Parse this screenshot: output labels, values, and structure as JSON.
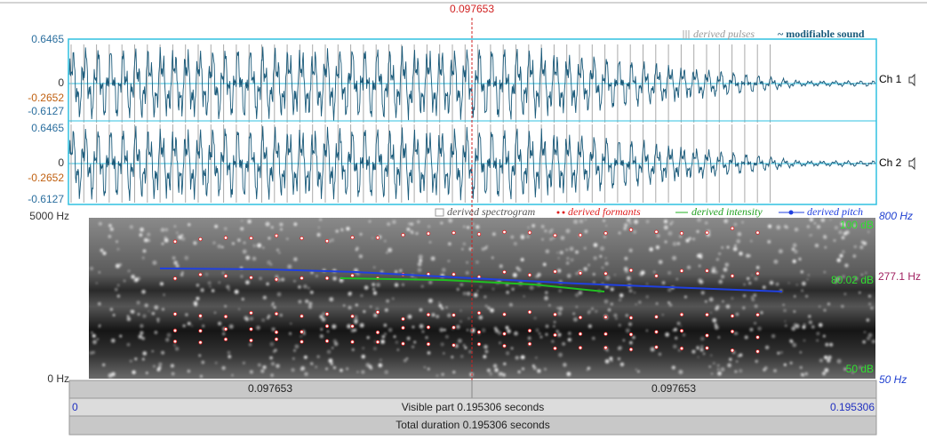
{
  "cursor": "0.097653",
  "legend_top": {
    "pulses": "derived pulses",
    "sound": "~ modifiable sound"
  },
  "channels": [
    {
      "max": "0.6465",
      "zero": "0",
      "cursor_value": "-0.2652",
      "min": "-0.6127",
      "label": "Ch 1"
    },
    {
      "max": "0.6465",
      "zero": "0",
      "cursor_value": "-0.2652",
      "min": "-0.6127",
      "label": "Ch 2"
    }
  ],
  "spectrogram": {
    "legend": [
      "derived spectrogram",
      "derived formants",
      "derived intensity",
      "derived pitch"
    ],
    "freq_max": "5000 Hz",
    "freq_min": "0 Hz",
    "pitch_max": "800 Hz",
    "pitch_cursor": "277.1 Hz",
    "pitch_min": "50 Hz",
    "int_max": "100 dB",
    "int_cursor": "80.02 dB",
    "int_min": "50 dB"
  },
  "time_bar": {
    "left": "0.097653",
    "right": "0.097653",
    "start": "0",
    "visible": "Visible part 0.195306 seconds",
    "end": "0.195306",
    "total": "Total duration 0.195306 seconds"
  }
}
